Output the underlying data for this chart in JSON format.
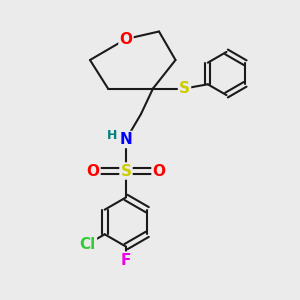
{
  "bg_color": "#ebebeb",
  "bond_color": "#1a1a1a",
  "bond_width": 1.5,
  "atom_colors": {
    "O": "#ff0000",
    "N": "#0000ff",
    "S_thio": "#cccc00",
    "S_sulfo": "#cccc00",
    "Cl": "#33cc33",
    "F": "#ee00ee",
    "H": "#008080",
    "C": "#1a1a1a"
  },
  "font_size_atom": 11,
  "font_size_small": 9
}
